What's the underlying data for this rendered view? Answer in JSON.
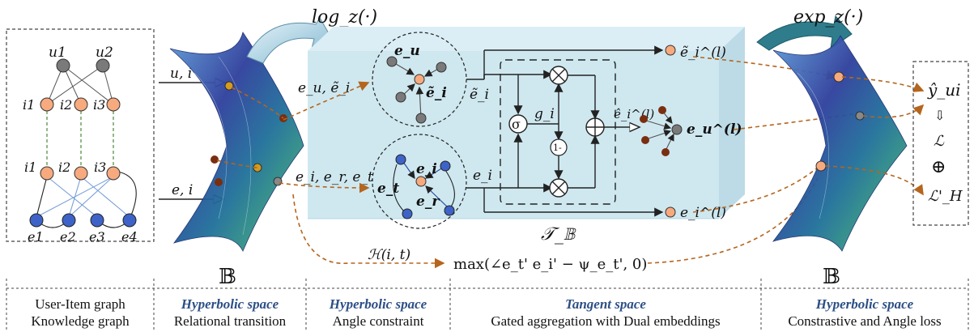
{
  "top": {
    "log_label": "log_z(·)",
    "exp_label": "exp_z(·)"
  },
  "graph": {
    "users": [
      "u1",
      "u2"
    ],
    "items_top": [
      "i1",
      "i2",
      "i3"
    ],
    "items_bottom": [
      "i1",
      "i2",
      "i3"
    ],
    "entities": [
      "e1",
      "e2",
      "e3",
      "e4"
    ]
  },
  "inputs": {
    "ui_label": "u, i",
    "ei_label": "e, i"
  },
  "hyper_symbol": "𝔹",
  "tangent": {
    "eu_ei_label": "e_u, ẽ_i",
    "er_label": "e_i, e_r, e_t",
    "eu_node": "e_u",
    "ei_tilde_node": "ẽ_i",
    "et_node": "e_t",
    "ei_node": "e_i",
    "er_node": "e_r",
    "ei_tilde_out": "ẽ_i",
    "ei_out": "e_i",
    "gate": "g_i",
    "sigma": "σ",
    "one_minus": "1-",
    "hat_ei": "ê_i^(l)",
    "eu_l": "e_u^(l)",
    "tilde_ei_l": "ẽ_i^(l)",
    "ei_l": "e_i^(l)",
    "tb": "𝒯_𝔹",
    "h_func": "ℋ(i, t)",
    "max_expr": "max(∠e_t' e_i' − ψ_e_t', 0)"
  },
  "outputs": {
    "y_hat": "ŷ_ui",
    "arrow": "⇩",
    "L": "ℒ",
    "oplus": "⊕",
    "LH": "ℒ'_H"
  },
  "captions": [
    {
      "title": "",
      "line1": "User-Item graph",
      "line2": "Knowledge graph"
    },
    {
      "title": "Hyperbolic space",
      "line1": "",
      "line2": "Relational transition"
    },
    {
      "title": "Hyperbolic space",
      "line1": "",
      "line2": "Angle constraint"
    },
    {
      "title": "Tangent space",
      "line1": "",
      "line2": "Gated aggregation with Dual embeddings"
    },
    {
      "title": "Hyperbolic space",
      "line1": "",
      "line2": "Constrastive and Angle loss"
    }
  ],
  "colors": {
    "tangent_box": "#cfe8f0",
    "orange_node": "#f7aa7e",
    "blue_node": "#3e63c8",
    "gray_node": "#7a7a7a",
    "flow": "#b5651d",
    "caption_blue": "#2d4f86"
  }
}
